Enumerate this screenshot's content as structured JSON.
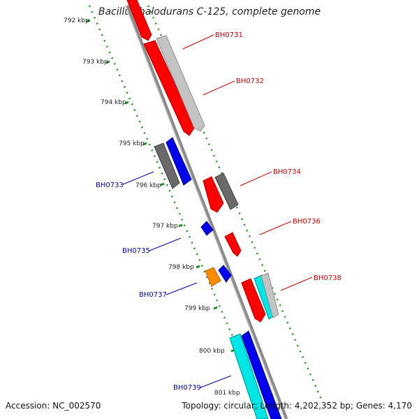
{
  "title": "Bacillus halodurans C-125, complete genome",
  "accession": "Accession: NC_002570",
  "topology": "Topology: circular; Length: 4,202,352 bp; Genes: 4,170",
  "colors": {
    "red": "#ff0000",
    "grey": "#b8b8b8",
    "dark_grey": "#6a6a6a",
    "blue": "#0000ee",
    "cyan": "#00e5e5",
    "orange": "#ff8c00",
    "axis_green": "#1f8f1f",
    "backbone": "#8a8a8a",
    "label_red": "#cc0000",
    "label_blue": "#0000aa"
  },
  "kbp_ticks": [
    "792 kbp",
    "793 kbp",
    "794 kbp",
    "795 kbp",
    "796 kbp",
    "797 kbp",
    "798 kbp",
    "799 kbp",
    "800 kbp",
    "801 kbp"
  ],
  "gene_labels": [
    "BH0731",
    "BH0732",
    "BH0733",
    "BH0734",
    "BH0735",
    "BH0736",
    "BH0737",
    "BH0738",
    "BH0739"
  ]
}
